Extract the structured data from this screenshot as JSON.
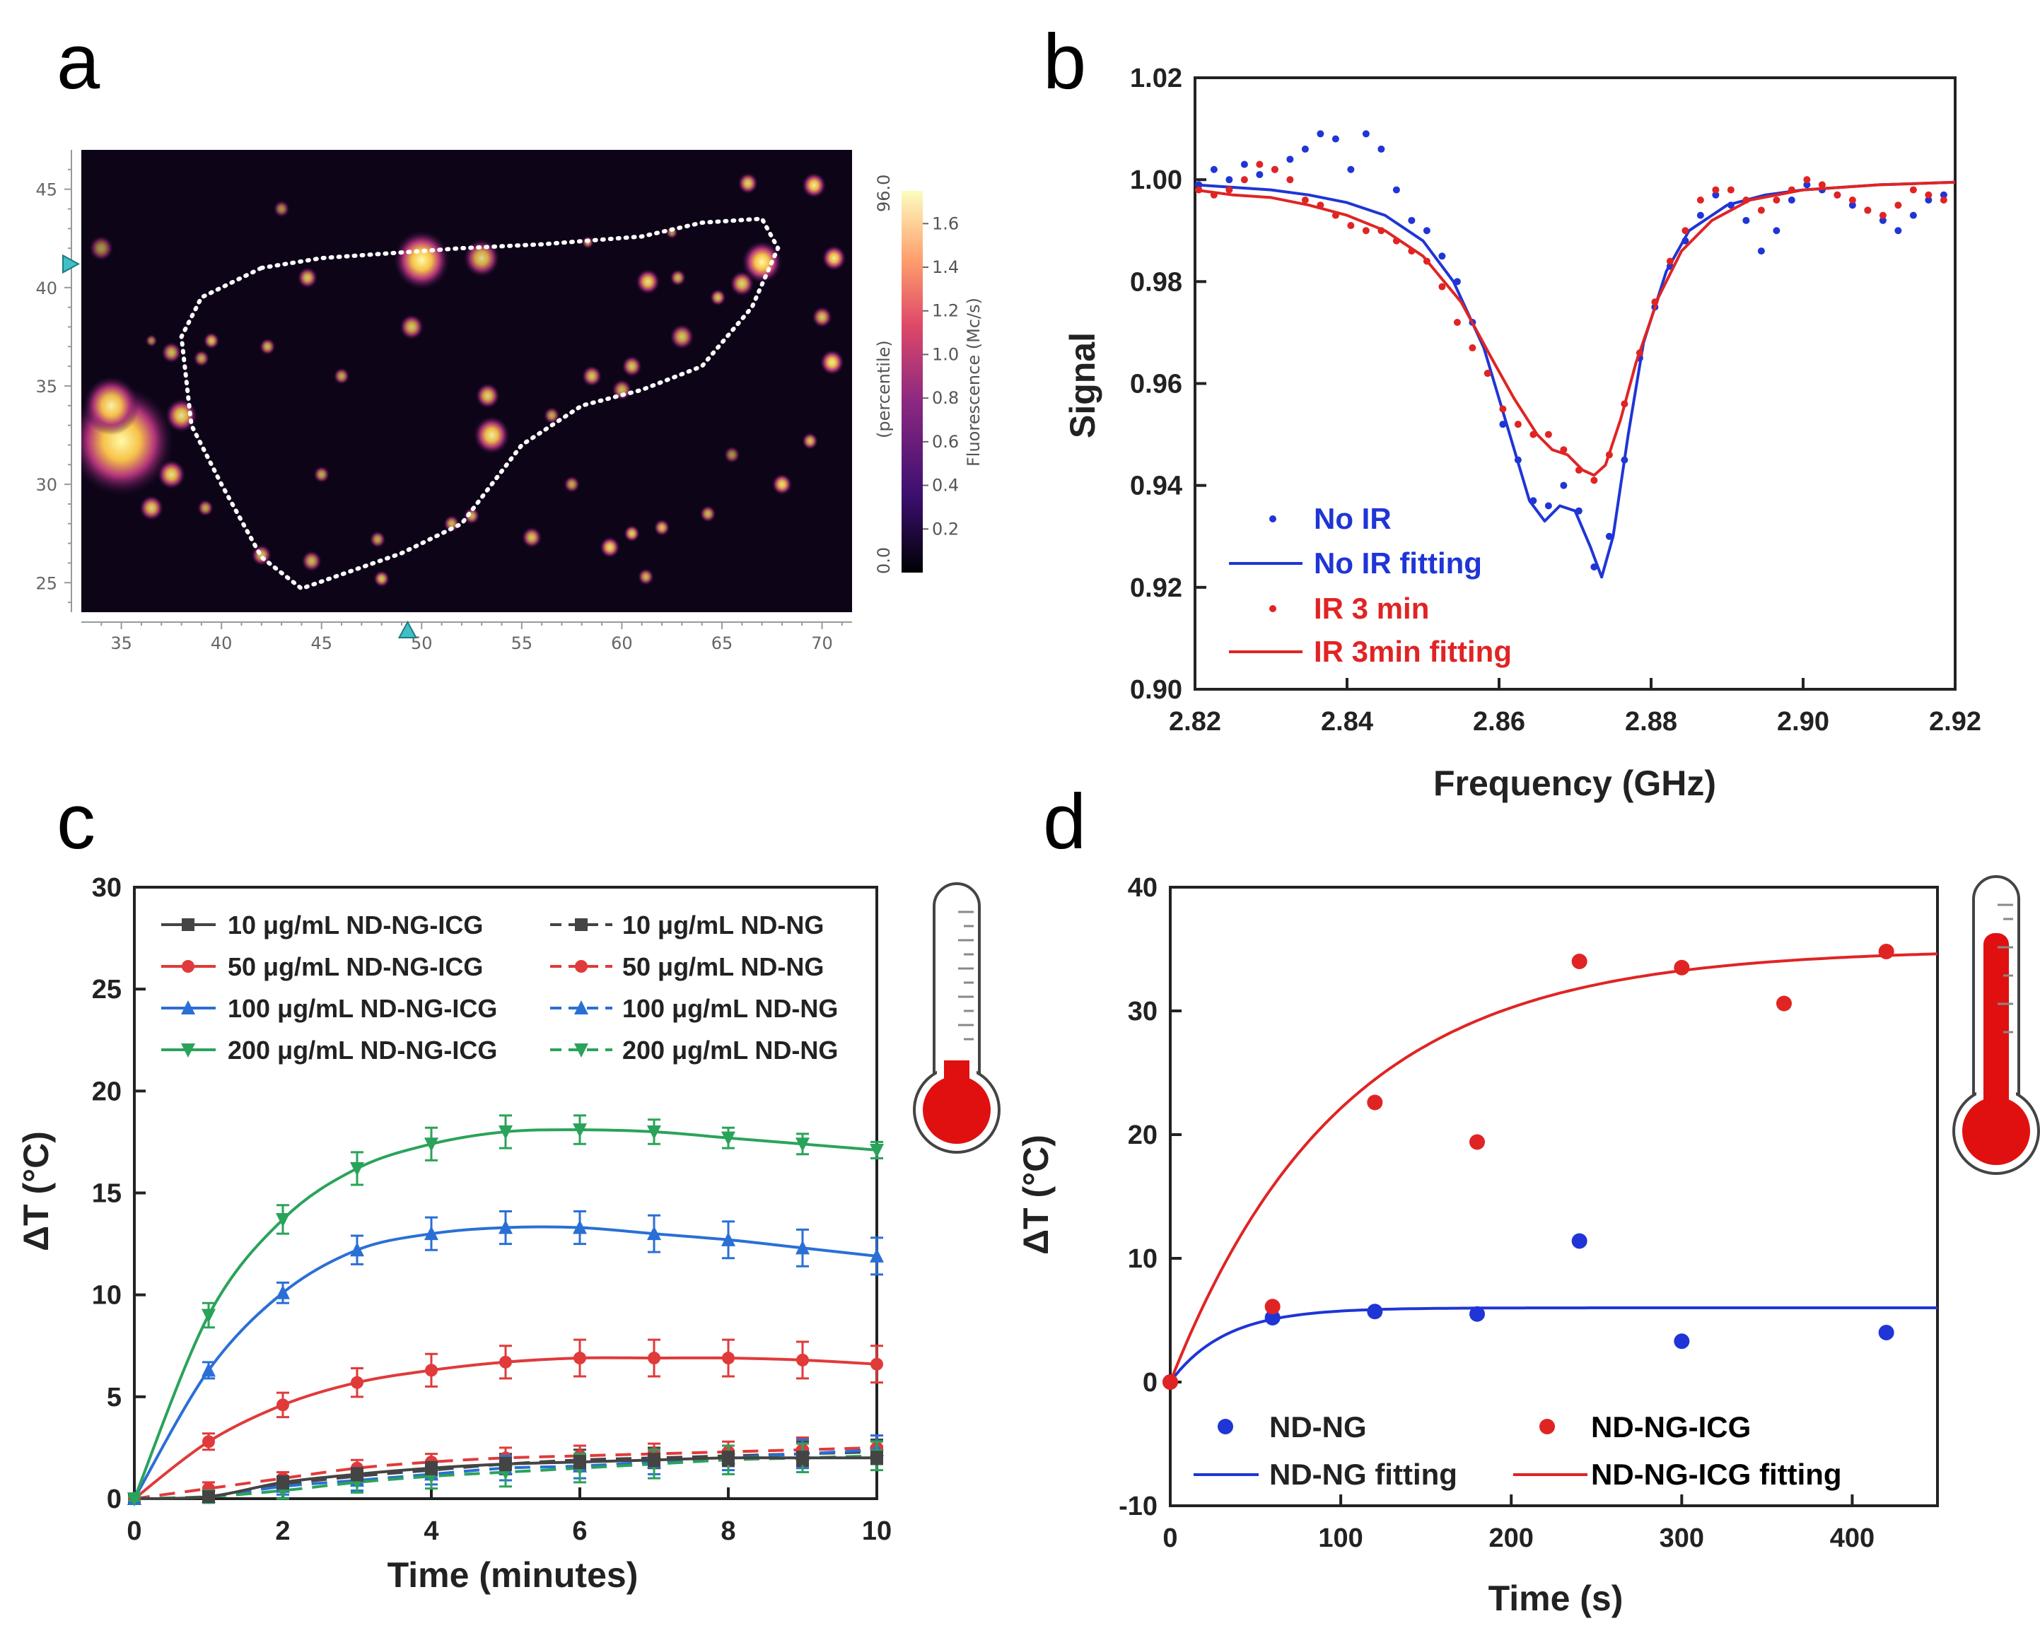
{
  "panels": {
    "a": "a",
    "b": "b",
    "c": "c",
    "d": "d"
  },
  "colors": {
    "blue": "#1f35d6",
    "red": "#e02424",
    "dark": "#444444",
    "c_red": "#e03a3a",
    "c_blue": "#2a6fd6",
    "c_green": "#2aa35a",
    "heat_bg": "#0d0517"
  },
  "chart_data": [
    {
      "panel": "a",
      "type": "heatmap",
      "x_ticks": [
        "35",
        "40",
        "45",
        "50",
        "55",
        "60",
        "65",
        "70"
      ],
      "y_ticks": [
        "25",
        "30",
        "35",
        "40",
        "45"
      ],
      "xlim": [
        33,
        71.5
      ],
      "ylim": [
        23.5,
        47
      ],
      "colorbar": {
        "label": "Fluorescence (Mc/s)",
        "sub_label": "(percentile)",
        "min_label": "0.0",
        "max_label": "96.0",
        "ticks": [
          "0.2",
          "0.4",
          "0.6",
          "0.8",
          "1.0",
          "1.2",
          "1.4",
          "1.6"
        ],
        "range": [
          0,
          1.75
        ]
      },
      "markers": {
        "y": 41.2,
        "x": 49.3
      },
      "cell_outline": [
        [
          42,
          41
        ],
        [
          45,
          41.5
        ],
        [
          52,
          42
        ],
        [
          56,
          42.2
        ],
        [
          61,
          42.6
        ],
        [
          64,
          43.3
        ],
        [
          67,
          43.5
        ],
        [
          67.8,
          42
        ],
        [
          66.5,
          39
        ],
        [
          64,
          36
        ],
        [
          61,
          34.8
        ],
        [
          58,
          34
        ],
        [
          55,
          32
        ],
        [
          52,
          28
        ],
        [
          49,
          26.5
        ],
        [
          44,
          24.7
        ],
        [
          42,
          26.3
        ],
        [
          40,
          30
        ],
        [
          38.5,
          33
        ],
        [
          38,
          37.5
        ],
        [
          39,
          39.5
        ]
      ],
      "spots": [
        [
          35,
          32.2,
          2.6,
          1.0
        ],
        [
          34.5,
          34,
          1.4,
          0.95
        ],
        [
          38,
          33.5,
          0.8,
          0.9
        ],
        [
          37.5,
          30.5,
          0.7,
          0.9
        ],
        [
          36.5,
          28.8,
          0.6,
          0.85
        ],
        [
          50,
          41.4,
          1.4,
          1.0
        ],
        [
          53,
          41.5,
          0.9,
          0.85
        ],
        [
          49.5,
          38,
          0.6,
          0.8
        ],
        [
          53.5,
          32.5,
          0.9,
          0.95
        ],
        [
          53.3,
          34.5,
          0.6,
          0.85
        ],
        [
          61.3,
          40.3,
          0.6,
          0.9
        ],
        [
          67,
          41.3,
          1.0,
          1.0
        ],
        [
          66,
          40.2,
          0.6,
          0.85
        ],
        [
          63,
          37.5,
          0.6,
          0.8
        ],
        [
          60.5,
          36,
          0.5,
          0.8
        ],
        [
          58.5,
          35.5,
          0.5,
          0.8
        ],
        [
          60,
          34.8,
          0.5,
          0.75
        ],
        [
          46,
          35.5,
          0.4,
          0.7
        ],
        [
          44.3,
          40.5,
          0.5,
          0.8
        ],
        [
          42.3,
          37,
          0.4,
          0.75
        ],
        [
          42,
          26.4,
          0.5,
          0.8
        ],
        [
          44.5,
          26.1,
          0.5,
          0.75
        ],
        [
          48,
          25.2,
          0.4,
          0.8
        ],
        [
          51.5,
          28,
          0.4,
          0.75
        ],
        [
          52.5,
          28.4,
          0.4,
          0.75
        ],
        [
          39.5,
          37.3,
          0.4,
          0.8
        ],
        [
          39,
          36.4,
          0.4,
          0.7
        ],
        [
          60.5,
          27.5,
          0.4,
          0.85
        ],
        [
          59.4,
          26.8,
          0.5,
          0.9
        ],
        [
          62,
          27.8,
          0.4,
          0.8
        ],
        [
          64.3,
          28.5,
          0.4,
          0.75
        ],
        [
          61.2,
          25.3,
          0.4,
          0.75
        ],
        [
          68,
          30,
          0.5,
          0.9
        ],
        [
          69.4,
          32.2,
          0.4,
          0.8
        ],
        [
          70.5,
          36.2,
          0.6,
          0.95
        ],
        [
          70,
          38.5,
          0.5,
          0.8
        ],
        [
          70.6,
          41.5,
          0.6,
          0.95
        ],
        [
          69.6,
          45.2,
          0.6,
          0.95
        ],
        [
          66.3,
          45.3,
          0.5,
          0.85
        ],
        [
          62.8,
          40.5,
          0.4,
          0.75
        ],
        [
          57.5,
          30,
          0.4,
          0.7
        ],
        [
          55.5,
          27.3,
          0.5,
          0.8
        ],
        [
          47.8,
          27.2,
          0.4,
          0.7
        ],
        [
          45,
          30.5,
          0.4,
          0.7
        ],
        [
          56.5,
          33.5,
          0.4,
          0.7
        ],
        [
          37.5,
          36.7,
          0.5,
          0.75
        ],
        [
          39.2,
          28.8,
          0.4,
          0.7
        ],
        [
          43,
          44,
          0.4,
          0.6
        ],
        [
          34,
          42,
          0.6,
          0.6
        ],
        [
          36.5,
          37.3,
          0.3,
          0.6
        ],
        [
          58.3,
          42.3,
          0.3,
          0.7
        ],
        [
          62.5,
          42.8,
          0.3,
          0.65
        ],
        [
          64.8,
          39.5,
          0.4,
          0.8
        ],
        [
          65.5,
          31.5,
          0.4,
          0.6
        ]
      ]
    },
    {
      "panel": "b",
      "type": "scatter",
      "xlabel": "Frequency (GHz)",
      "ylabel": "Signal",
      "xlim": [
        2.82,
        2.92
      ],
      "ylim": [
        0.9,
        1.02
      ],
      "x_ticks": [
        "2.82",
        "2.84",
        "2.86",
        "2.88",
        "2.90",
        "2.92"
      ],
      "y_ticks": [
        "0.90",
        "0.92",
        "0.94",
        "0.96",
        "0.98",
        "1.00",
        "1.02"
      ],
      "legend": [
        "No IR",
        "No IR fitting",
        "IR 3 min",
        "IR 3min fitting"
      ],
      "series": [
        {
          "name": "No IR",
          "x": [
            2.8205,
            2.8225,
            2.8245,
            2.8265,
            2.8285,
            2.8305,
            2.8325,
            2.8345,
            2.8365,
            2.8385,
            2.8405,
            2.8425,
            2.8445,
            2.8465,
            2.8485,
            2.8505,
            2.8525,
            2.8545,
            2.8565,
            2.8585,
            2.8605,
            2.8625,
            2.8645,
            2.8665,
            2.8685,
            2.8705,
            2.8725,
            2.8745,
            2.8765,
            2.8785,
            2.8805,
            2.8825,
            2.8845,
            2.8865,
            2.8885,
            2.8905,
            2.8925,
            2.8945,
            2.8965,
            2.8985,
            2.9005,
            2.9025,
            2.9045,
            2.9065,
            2.9085,
            2.9105,
            2.9125,
            2.9145,
            2.9165,
            2.9185
          ],
          "values": [
            0.999,
            1.002,
            1.0,
            1.003,
            1.001,
            1.002,
            1.004,
            1.006,
            1.009,
            1.008,
            1.002,
            1.009,
            1.006,
            0.998,
            0.992,
            0.99,
            0.985,
            0.98,
            0.972,
            0.962,
            0.952,
            0.945,
            0.937,
            0.936,
            0.94,
            0.935,
            0.924,
            0.93,
            0.945,
            0.965,
            0.975,
            0.983,
            0.988,
            0.993,
            0.997,
            0.995,
            0.992,
            0.986,
            0.99,
            0.996,
            0.999,
            0.998,
            0.997,
            0.995,
            0.994,
            0.992,
            0.99,
            0.993,
            0.996,
            0.997
          ]
        },
        {
          "name": "No IR fitting",
          "x": [
            2.82,
            2.825,
            2.83,
            2.835,
            2.84,
            2.845,
            2.85,
            2.854,
            2.858,
            2.861,
            2.864,
            2.866,
            2.868,
            2.87,
            2.872,
            2.8735,
            2.875,
            2.877,
            2.879,
            2.882,
            2.885,
            2.89,
            2.895,
            2.9,
            2.91,
            2.92
          ],
          "values": [
            0.999,
            0.9985,
            0.998,
            0.997,
            0.9955,
            0.993,
            0.988,
            0.98,
            0.967,
            0.952,
            0.937,
            0.933,
            0.936,
            0.935,
            0.928,
            0.922,
            0.93,
            0.95,
            0.968,
            0.982,
            0.99,
            0.995,
            0.997,
            0.998,
            0.999,
            0.9995
          ]
        },
        {
          "name": "IR 3 min",
          "x": [
            2.8205,
            2.8225,
            2.8245,
            2.8265,
            2.8285,
            2.8305,
            2.8325,
            2.8345,
            2.8365,
            2.8385,
            2.8405,
            2.8425,
            2.8445,
            2.8465,
            2.8485,
            2.8505,
            2.8525,
            2.8545,
            2.8565,
            2.8585,
            2.8605,
            2.8625,
            2.8645,
            2.8665,
            2.8685,
            2.8705,
            2.8725,
            2.8745,
            2.8765,
            2.8785,
            2.8805,
            2.8825,
            2.8845,
            2.8865,
            2.8885,
            2.8905,
            2.8925,
            2.8945,
            2.8965,
            2.8985,
            2.9005,
            2.9025,
            2.9045,
            2.9065,
            2.9085,
            2.9105,
            2.9125,
            2.9145,
            2.9165,
            2.9185
          ],
          "values": [
            0.998,
            0.997,
            0.998,
            1.0,
            1.003,
            1.002,
            1.0,
            0.996,
            0.995,
            0.993,
            0.991,
            0.99,
            0.99,
            0.988,
            0.986,
            0.984,
            0.979,
            0.972,
            0.967,
            0.962,
            0.955,
            0.952,
            0.95,
            0.95,
            0.947,
            0.943,
            0.941,
            0.946,
            0.956,
            0.966,
            0.976,
            0.984,
            0.99,
            0.996,
            0.998,
            0.998,
            0.996,
            0.994,
            0.996,
            0.998,
            1.0,
            0.999,
            0.997,
            0.996,
            0.994,
            0.993,
            0.995,
            0.998,
            0.997,
            0.996
          ]
        },
        {
          "name": "IR 3min fitting",
          "x": [
            2.82,
            2.825,
            2.83,
            2.835,
            2.84,
            2.845,
            2.85,
            2.855,
            2.859,
            2.862,
            2.865,
            2.867,
            2.869,
            2.871,
            2.8725,
            2.874,
            2.876,
            2.878,
            2.881,
            2.884,
            2.888,
            2.893,
            2.9,
            2.91,
            2.92
          ],
          "values": [
            0.998,
            0.997,
            0.9965,
            0.995,
            0.993,
            0.99,
            0.985,
            0.976,
            0.965,
            0.957,
            0.95,
            0.947,
            0.946,
            0.943,
            0.942,
            0.944,
            0.953,
            0.964,
            0.977,
            0.986,
            0.992,
            0.996,
            0.998,
            0.999,
            0.9995
          ]
        }
      ]
    },
    {
      "panel": "c",
      "type": "line",
      "xlabel": "Time (minutes)",
      "ylabel": "ΔT (°C)",
      "xlim": [
        0,
        10
      ],
      "ylim": [
        0,
        30
      ],
      "x_ticks": [
        "0",
        "2",
        "4",
        "6",
        "8",
        "10"
      ],
      "y_ticks": [
        "0",
        "5",
        "10",
        "15",
        "20",
        "25",
        "30"
      ],
      "x": [
        0,
        1,
        2,
        3,
        4,
        5,
        6,
        7,
        8,
        9,
        10
      ],
      "series": [
        {
          "name": "10 μg/mL ND-NG-ICG",
          "values": [
            0,
            0.1,
            0.8,
            1.2,
            1.5,
            1.7,
            1.8,
            1.9,
            2.0,
            2.0,
            2.0
          ],
          "err": [
            0.1,
            0.2,
            0.3,
            0.3,
            0.3,
            0.3,
            0.3,
            0.3,
            0.3,
            0.3,
            0.3
          ]
        },
        {
          "name": "50 μg/mL ND-NG-ICG",
          "values": [
            0,
            2.8,
            4.6,
            5.7,
            6.3,
            6.7,
            6.9,
            6.9,
            6.9,
            6.8,
            6.6
          ],
          "err": [
            0.1,
            0.4,
            0.6,
            0.7,
            0.8,
            0.8,
            0.9,
            0.9,
            0.9,
            0.9,
            0.9
          ]
        },
        {
          "name": "100 μg/mL ND-NG-ICG",
          "values": [
            0,
            6.3,
            10.1,
            12.2,
            13.0,
            13.3,
            13.3,
            13.0,
            12.7,
            12.3,
            11.9
          ],
          "err": [
            0.1,
            0.4,
            0.5,
            0.7,
            0.8,
            0.8,
            0.8,
            0.9,
            0.9,
            0.9,
            0.9
          ]
        },
        {
          "name": "200 μg/mL ND-NG-ICG",
          "values": [
            0,
            9.0,
            13.7,
            16.2,
            17.4,
            18.0,
            18.1,
            18.0,
            17.7,
            17.4,
            17.1
          ],
          "err": [
            0.1,
            0.6,
            0.7,
            0.8,
            0.8,
            0.8,
            0.7,
            0.6,
            0.5,
            0.5,
            0.4
          ]
        },
        {
          "name": "10 μg/mL ND-NG",
          "values": [
            0,
            0.1,
            0.7,
            1.1,
            1.4,
            1.7,
            1.9,
            2.0,
            2.1,
            2.2,
            2.3
          ],
          "err": [
            0.1,
            0.2,
            0.3,
            0.4,
            0.4,
            0.5,
            0.5,
            0.5,
            0.5,
            0.6,
            0.6
          ]
        },
        {
          "name": "50 μg/mL ND-NG",
          "values": [
            0,
            0.5,
            1.0,
            1.5,
            1.8,
            2.0,
            2.1,
            2.2,
            2.3,
            2.4,
            2.5
          ],
          "err": [
            0.1,
            0.3,
            0.3,
            0.4,
            0.4,
            0.5,
            0.5,
            0.5,
            0.5,
            0.6,
            0.6
          ]
        },
        {
          "name": "100 μg/mL ND-NG",
          "values": [
            0,
            0.1,
            0.6,
            0.9,
            1.2,
            1.5,
            1.6,
            1.8,
            2.0,
            2.2,
            2.4
          ],
          "err": [
            0.1,
            0.3,
            0.4,
            0.5,
            0.5,
            0.6,
            0.6,
            0.6,
            0.6,
            0.7,
            0.7
          ]
        },
        {
          "name": "200 μg/mL ND-NG",
          "values": [
            0,
            0.1,
            0.4,
            0.8,
            1.1,
            1.3,
            1.5,
            1.7,
            1.9,
            2.0,
            2.1
          ],
          "err": [
            0.1,
            0.3,
            0.4,
            0.5,
            0.6,
            0.7,
            0.7,
            0.7,
            0.7,
            0.7,
            0.7
          ]
        }
      ]
    },
    {
      "panel": "d",
      "type": "scatter",
      "xlabel": "Time (s)",
      "ylabel": "ΔT (°C)",
      "xlim": [
        0,
        450
      ],
      "ylim": [
        -10,
        40
      ],
      "x_ticks": [
        "0",
        "100",
        "200",
        "300",
        "400"
      ],
      "y_ticks": [
        "-10",
        "0",
        "10",
        "20",
        "30",
        "40"
      ],
      "legend": [
        "ND-NG",
        "ND-NG-ICG",
        "ND-NG fitting",
        "ND-NG-ICG fitting"
      ],
      "series": [
        {
          "name": "ND-NG",
          "x": [
            0,
            60,
            120,
            180,
            240,
            300,
            420
          ],
          "values": [
            0,
            5.2,
            5.7,
            5.5,
            11.4,
            3.3,
            4.0
          ]
        },
        {
          "name": "ND-NG-ICG",
          "x": [
            0,
            60,
            120,
            180,
            240,
            300,
            360,
            420
          ],
          "values": [
            0,
            6.1,
            22.6,
            19.4,
            34.0,
            33.5,
            30.6,
            34.8
          ]
        },
        {
          "name": "ND-NG fitting",
          "model": "A*(1-exp(-t/tau))",
          "A": 6.0,
          "tau": 32,
          "xmax": 450
        },
        {
          "name": "ND-NG-ICG fitting",
          "model": "A*(1-exp(-t/tau))",
          "A": 35.0,
          "tau": 100,
          "xmax": 450
        }
      ]
    }
  ]
}
